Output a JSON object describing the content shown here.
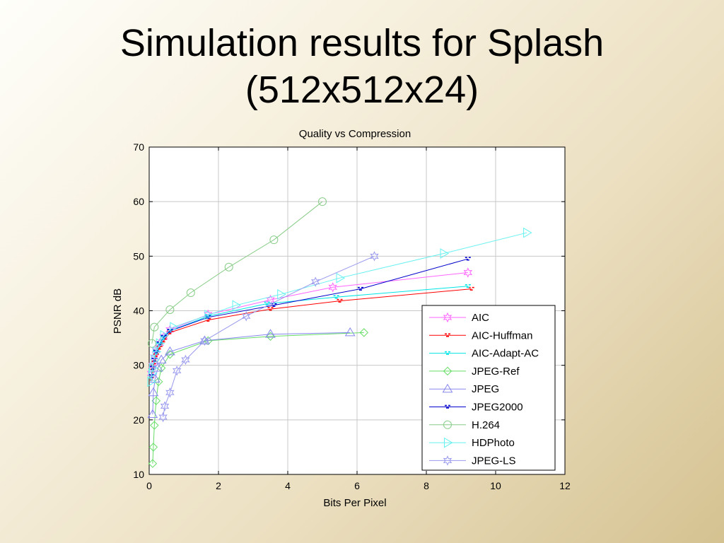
{
  "slide": {
    "title_line1": "Simulation results for Splash",
    "title_line2": "(512x512x24)"
  },
  "chart_data": {
    "type": "line",
    "title": "Quality vs Compression",
    "xlabel": "Bits Per Pixel",
    "ylabel": "PSNR dB",
    "xlim": [
      0,
      12
    ],
    "ylim": [
      10,
      70
    ],
    "xticks": [
      0,
      2,
      4,
      6,
      8,
      10,
      12
    ],
    "yticks": [
      10,
      20,
      30,
      40,
      50,
      60,
      70
    ],
    "grid": true,
    "legend_position": "bottom-right",
    "series": [
      {
        "name": "AIC",
        "marker": "hexagram",
        "color": "#ff66ff",
        "points": [
          [
            0.06,
            28.5
          ],
          [
            0.1,
            30
          ],
          [
            0.15,
            31.5
          ],
          [
            0.2,
            32.8
          ],
          [
            0.3,
            34
          ],
          [
            0.42,
            35.2
          ],
          [
            0.6,
            36.5
          ],
          [
            1.7,
            39.3
          ],
          [
            3.5,
            42
          ],
          [
            5.3,
            44.3
          ],
          [
            9.2,
            47
          ]
        ]
      },
      {
        "name": "AIC-Huffman",
        "marker": "dots",
        "color": "#ff0000",
        "points": [
          [
            0.06,
            27.5
          ],
          [
            0.1,
            29
          ],
          [
            0.15,
            30.5
          ],
          [
            0.2,
            31.8
          ],
          [
            0.3,
            33.2
          ],
          [
            0.42,
            34.5
          ],
          [
            0.6,
            36
          ],
          [
            1.7,
            38.3
          ],
          [
            3.5,
            40.3
          ],
          [
            5.5,
            41.8
          ],
          [
            9.3,
            44
          ]
        ]
      },
      {
        "name": "AIC-Adapt-AC",
        "marker": "dots",
        "color": "#00e5e5",
        "points": [
          [
            0.06,
            28
          ],
          [
            0.1,
            29.5
          ],
          [
            0.15,
            31
          ],
          [
            0.2,
            32.3
          ],
          [
            0.3,
            33.8
          ],
          [
            0.42,
            35
          ],
          [
            0.6,
            36.3
          ],
          [
            1.7,
            39
          ],
          [
            3.4,
            41.3
          ],
          [
            5.4,
            42.5
          ],
          [
            9.2,
            44.5
          ]
        ]
      },
      {
        "name": "JPEG-Ref",
        "marker": "diamond",
        "color": "#66dd66",
        "points": [
          [
            0.1,
            12
          ],
          [
            0.12,
            15
          ],
          [
            0.15,
            19
          ],
          [
            0.2,
            23.5
          ],
          [
            0.27,
            27
          ],
          [
            0.35,
            29.5
          ],
          [
            0.6,
            32
          ],
          [
            1.7,
            34.5
          ],
          [
            3.5,
            35.3
          ],
          [
            6.2,
            36
          ]
        ]
      },
      {
        "name": "JPEG",
        "marker": "triangle-up",
        "color": "#8888ee",
        "points": [
          [
            0.1,
            21
          ],
          [
            0.12,
            25
          ],
          [
            0.17,
            27.5
          ],
          [
            0.25,
            29.5
          ],
          [
            0.35,
            31
          ],
          [
            0.6,
            32.5
          ],
          [
            1.6,
            34.5
          ],
          [
            3.5,
            35.7
          ],
          [
            5.8,
            36
          ]
        ]
      },
      {
        "name": "JPEG2000",
        "marker": "dots",
        "color": "#0000cc",
        "points": [
          [
            0.06,
            28
          ],
          [
            0.1,
            29.5
          ],
          [
            0.15,
            31
          ],
          [
            0.2,
            32.5
          ],
          [
            0.3,
            34
          ],
          [
            0.42,
            35.2
          ],
          [
            0.6,
            36.3
          ],
          [
            1.7,
            38.8
          ],
          [
            3.6,
            41
          ],
          [
            6.1,
            44
          ],
          [
            9.2,
            49.5
          ]
        ]
      },
      {
        "name": "H.264",
        "marker": "circle",
        "color": "#88cc88",
        "points": [
          [
            0.08,
            34
          ],
          [
            0.15,
            37
          ],
          [
            0.6,
            40.2
          ],
          [
            1.2,
            43.3
          ],
          [
            2.3,
            48
          ],
          [
            3.6,
            53
          ],
          [
            5,
            60
          ]
        ]
      },
      {
        "name": "HDPhoto",
        "marker": "triangle-right",
        "color": "#66f0f0",
        "points": [
          [
            0.05,
            27
          ],
          [
            0.08,
            28.5
          ],
          [
            0.1,
            29.5
          ],
          [
            0.15,
            31
          ],
          [
            0.2,
            32.5
          ],
          [
            0.3,
            34
          ],
          [
            0.42,
            35.5
          ],
          [
            0.7,
            37
          ],
          [
            1.7,
            39.2
          ],
          [
            2.5,
            41
          ],
          [
            3.8,
            43
          ],
          [
            5.5,
            46
          ],
          [
            8.5,
            50.5
          ],
          [
            10.9,
            54.3
          ]
        ]
      },
      {
        "name": "JPEG-LS",
        "marker": "hexagram",
        "color": "#9999ee",
        "points": [
          [
            0.4,
            20.5
          ],
          [
            0.45,
            22.5
          ],
          [
            0.6,
            25
          ],
          [
            0.8,
            29
          ],
          [
            1.05,
            31
          ],
          [
            1.6,
            34.5
          ],
          [
            2.8,
            39
          ],
          [
            4.8,
            45.3
          ],
          [
            6.5,
            50
          ]
        ]
      }
    ]
  }
}
